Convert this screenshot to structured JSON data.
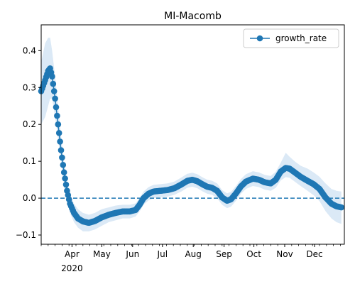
{
  "chart_data": {
    "type": "line",
    "title": "MI-Macomb",
    "xlabel": "",
    "ylabel": "",
    "x_domain": [
      "2020-03-01",
      "2020-12-31"
    ],
    "ylim": [
      -0.125,
      0.47
    ],
    "y_ticks": [
      -0.1,
      0.0,
      0.1,
      0.2,
      0.3,
      0.4
    ],
    "y_tick_labels": [
      "−0.1",
      "0.0",
      "0.1",
      "0.2",
      "0.3",
      "0.4"
    ],
    "x_ticks": [
      {
        "date": "2020-04-01",
        "label": "Apr"
      },
      {
        "date": "2020-05-01",
        "label": "May"
      },
      {
        "date": "2020-06-01",
        "label": "Jun"
      },
      {
        "date": "2020-07-01",
        "label": "Jul"
      },
      {
        "date": "2020-08-01",
        "label": "Aug"
      },
      {
        "date": "2020-09-01",
        "label": "Sep"
      },
      {
        "date": "2020-10-01",
        "label": "Oct"
      },
      {
        "date": "2020-11-01",
        "label": "Nov"
      },
      {
        "date": "2020-12-01",
        "label": "Dec"
      }
    ],
    "year_label": {
      "date": "2020-04-01",
      "label": "2020"
    },
    "reference_line": {
      "y": 0.0,
      "style": "dashed",
      "color": "#1f77b4"
    },
    "legend": {
      "position": "top-right"
    },
    "grid": false,
    "series": [
      {
        "name": "growth_rate",
        "color": "#1f77b4",
        "band_color": "#dbe9f6",
        "points": [
          {
            "x": "2020-03-01",
            "y": 0.29,
            "lo": 0.2,
            "hi": 0.37
          },
          {
            "x": "2020-03-05",
            "y": 0.32,
            "lo": 0.22,
            "hi": 0.42
          },
          {
            "x": "2020-03-08",
            "y": 0.345,
            "lo": 0.25,
            "hi": 0.435
          },
          {
            "x": "2020-03-10",
            "y": 0.352,
            "lo": 0.27,
            "hi": 0.435
          },
          {
            "x": "2020-03-12",
            "y": 0.33,
            "lo": 0.27,
            "hi": 0.4
          },
          {
            "x": "2020-03-15",
            "y": 0.27,
            "lo": 0.22,
            "hi": 0.33
          },
          {
            "x": "2020-03-18",
            "y": 0.2,
            "lo": 0.16,
            "hi": 0.25
          },
          {
            "x": "2020-03-21",
            "y": 0.13,
            "lo": 0.1,
            "hi": 0.17
          },
          {
            "x": "2020-03-24",
            "y": 0.07,
            "lo": 0.04,
            "hi": 0.1
          },
          {
            "x": "2020-03-27",
            "y": 0.02,
            "lo": -0.005,
            "hi": 0.045
          },
          {
            "x": "2020-03-30",
            "y": -0.015,
            "lo": -0.04,
            "hi": 0.01
          },
          {
            "x": "2020-04-03",
            "y": -0.04,
            "lo": -0.065,
            "hi": -0.015
          },
          {
            "x": "2020-04-07",
            "y": -0.055,
            "lo": -0.08,
            "hi": -0.03
          },
          {
            "x": "2020-04-12",
            "y": -0.063,
            "lo": -0.09,
            "hi": -0.04
          },
          {
            "x": "2020-04-18",
            "y": -0.067,
            "lo": -0.09,
            "hi": -0.045
          },
          {
            "x": "2020-04-24",
            "y": -0.062,
            "lo": -0.085,
            "hi": -0.04
          },
          {
            "x": "2020-05-01",
            "y": -0.052,
            "lo": -0.075,
            "hi": -0.03
          },
          {
            "x": "2020-05-08",
            "y": -0.045,
            "lo": -0.065,
            "hi": -0.025
          },
          {
            "x": "2020-05-15",
            "y": -0.04,
            "lo": -0.06,
            "hi": -0.02
          },
          {
            "x": "2020-05-22",
            "y": -0.036,
            "lo": -0.055,
            "hi": -0.018
          },
          {
            "x": "2020-05-29",
            "y": -0.036,
            "lo": -0.055,
            "hi": -0.018
          },
          {
            "x": "2020-06-04",
            "y": -0.032,
            "lo": -0.05,
            "hi": -0.014
          },
          {
            "x": "2020-06-08",
            "y": -0.018,
            "lo": -0.036,
            "hi": 0.0
          },
          {
            "x": "2020-06-12",
            "y": 0.0,
            "lo": -0.018,
            "hi": 0.018
          },
          {
            "x": "2020-06-17",
            "y": 0.012,
            "lo": -0.006,
            "hi": 0.03
          },
          {
            "x": "2020-06-22",
            "y": 0.018,
            "lo": 0.0,
            "hi": 0.036
          },
          {
            "x": "2020-06-29",
            "y": 0.02,
            "lo": 0.002,
            "hi": 0.038
          },
          {
            "x": "2020-07-06",
            "y": 0.022,
            "lo": 0.004,
            "hi": 0.04
          },
          {
            "x": "2020-07-13",
            "y": 0.027,
            "lo": 0.009,
            "hi": 0.045
          },
          {
            "x": "2020-07-20",
            "y": 0.037,
            "lo": 0.018,
            "hi": 0.056
          },
          {
            "x": "2020-07-26",
            "y": 0.047,
            "lo": 0.028,
            "hi": 0.066
          },
          {
            "x": "2020-07-31",
            "y": 0.05,
            "lo": 0.031,
            "hi": 0.069
          },
          {
            "x": "2020-08-05",
            "y": 0.046,
            "lo": 0.027,
            "hi": 0.065
          },
          {
            "x": "2020-08-10",
            "y": 0.038,
            "lo": 0.019,
            "hi": 0.057
          },
          {
            "x": "2020-08-15",
            "y": 0.031,
            "lo": 0.012,
            "hi": 0.05
          },
          {
            "x": "2020-08-20",
            "y": 0.028,
            "lo": 0.009,
            "hi": 0.047
          },
          {
            "x": "2020-08-25",
            "y": 0.02,
            "lo": 0.0,
            "hi": 0.04
          },
          {
            "x": "2020-08-30",
            "y": 0.002,
            "lo": -0.018,
            "hi": 0.022
          },
          {
            "x": "2020-09-04",
            "y": -0.007,
            "lo": -0.027,
            "hi": 0.013
          },
          {
            "x": "2020-09-08",
            "y": -0.003,
            "lo": -0.023,
            "hi": 0.017
          },
          {
            "x": "2020-09-13",
            "y": 0.013,
            "lo": -0.007,
            "hi": 0.033
          },
          {
            "x": "2020-09-18",
            "y": 0.032,
            "lo": 0.012,
            "hi": 0.052
          },
          {
            "x": "2020-09-23",
            "y": 0.045,
            "lo": 0.025,
            "hi": 0.065
          },
          {
            "x": "2020-09-30",
            "y": 0.053,
            "lo": 0.033,
            "hi": 0.073
          },
          {
            "x": "2020-10-06",
            "y": 0.05,
            "lo": 0.03,
            "hi": 0.07
          },
          {
            "x": "2020-10-12",
            "y": 0.043,
            "lo": 0.023,
            "hi": 0.063
          },
          {
            "x": "2020-10-18",
            "y": 0.04,
            "lo": 0.02,
            "hi": 0.06
          },
          {
            "x": "2020-10-23",
            "y": 0.05,
            "lo": 0.028,
            "hi": 0.072
          },
          {
            "x": "2020-10-28",
            "y": 0.072,
            "lo": 0.048,
            "hi": 0.096
          },
          {
            "x": "2020-11-02",
            "y": 0.082,
            "lo": 0.057,
            "hi": 0.123
          },
          {
            "x": "2020-11-06",
            "y": 0.08,
            "lo": 0.055,
            "hi": 0.112
          },
          {
            "x": "2020-11-11",
            "y": 0.07,
            "lo": 0.045,
            "hi": 0.1
          },
          {
            "x": "2020-11-17",
            "y": 0.058,
            "lo": 0.033,
            "hi": 0.088
          },
          {
            "x": "2020-11-24",
            "y": 0.047,
            "lo": 0.02,
            "hi": 0.08
          },
          {
            "x": "2020-11-30",
            "y": 0.038,
            "lo": 0.008,
            "hi": 0.07
          },
          {
            "x": "2020-12-06",
            "y": 0.025,
            "lo": -0.008,
            "hi": 0.058
          },
          {
            "x": "2020-12-12",
            "y": 0.002,
            "lo": -0.035,
            "hi": 0.04
          },
          {
            "x": "2020-12-18",
            "y": -0.015,
            "lo": -0.055,
            "hi": 0.025
          },
          {
            "x": "2020-12-23",
            "y": -0.022,
            "lo": -0.065,
            "hi": 0.02
          },
          {
            "x": "2020-12-28",
            "y": -0.025,
            "lo": -0.07,
            "hi": 0.018
          }
        ]
      }
    ]
  }
}
